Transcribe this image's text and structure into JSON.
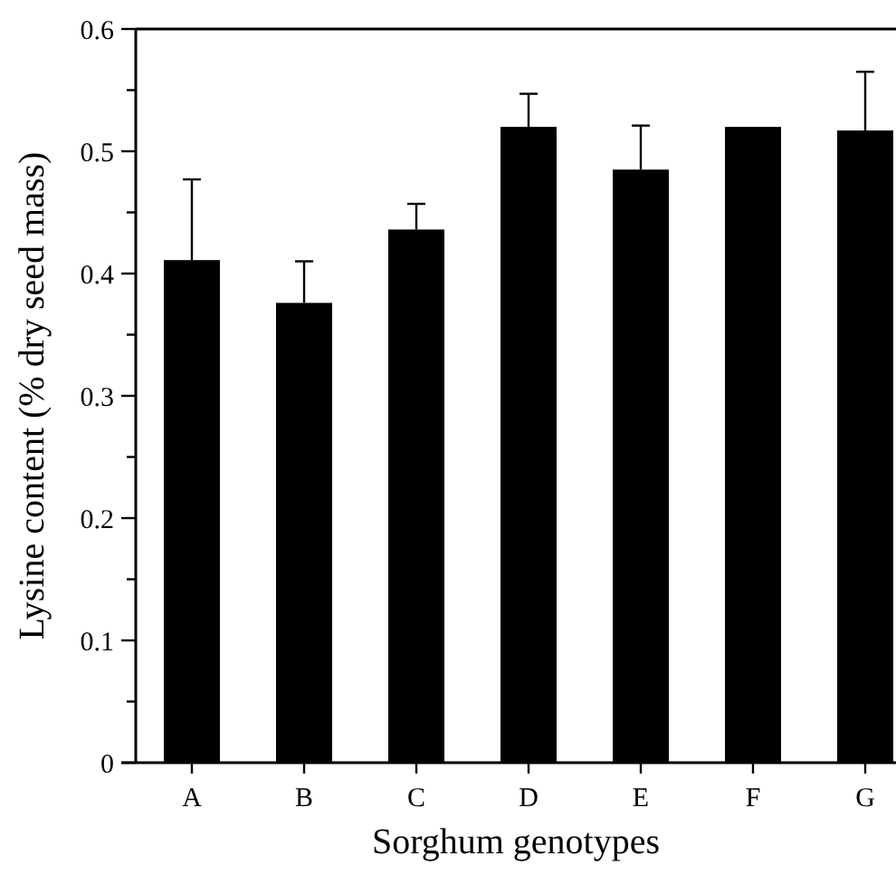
{
  "chart_data": {
    "type": "bar",
    "xlabel": "Sorghum genotypes",
    "ylabel": "Lysine content (% dry seed mass)",
    "categories": [
      "A",
      "B",
      "C",
      "D",
      "E",
      "F",
      "G"
    ],
    "values": [
      0.411,
      0.376,
      0.436,
      0.52,
      0.485,
      0.52,
      0.517
    ],
    "errors": [
      [
        0.411,
        0.477
      ],
      [
        0.376,
        0.41
      ],
      [
        0.436,
        0.457
      ],
      [
        0.52,
        0.547
      ],
      [
        0.485,
        0.521
      ],
      null,
      [
        0.517,
        0.565
      ]
    ],
    "color": "#000000",
    "ylim": [
      0,
      0.6
    ],
    "yticks": [
      0,
      {
        "value": 0.05,
        "label": null
      },
      0.1,
      {
        "value": 0.15,
        "label": null
      },
      0.2,
      {
        "value": 0.25,
        "label": null
      },
      0.3,
      {
        "value": 0.35,
        "label": null
      },
      0.4,
      {
        "value": 0.45,
        "label": null
      },
      0.5,
      {
        "value": 0.55,
        "label": null
      },
      0.6
    ],
    "grid": false
  }
}
